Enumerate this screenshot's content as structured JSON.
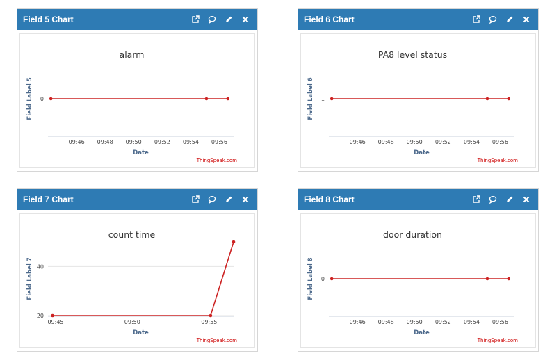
{
  "colors": {
    "header": "#2e7bb4",
    "series": "#cc2222",
    "axis": "#c8d2dc",
    "grid": "#e4e4e4"
  },
  "icons": [
    "external-link-icon",
    "comment-icon",
    "pencil-icon",
    "close-icon"
  ],
  "charts": [
    {
      "header_title": "Field 5 Chart",
      "chart_data": {
        "type": "line",
        "title": "alarm",
        "xlabel": "Date",
        "ylabel": "Field Label 5",
        "credit": "ThingSpeak.com",
        "x_range_minutes": [
          9.7333,
          9.95
        ],
        "x_ticks": [
          {
            "label": "09:46",
            "value": 9.7667
          },
          {
            "label": "09:48",
            "value": 9.8
          },
          {
            "label": "09:50",
            "value": 9.8333
          },
          {
            "label": "09:52",
            "value": 9.8667
          },
          {
            "label": "09:54",
            "value": 9.9
          },
          {
            "label": "09:56",
            "value": 9.9333
          }
        ],
        "ylim": [
          -1,
          1
        ],
        "y_ticks": [
          {
            "label": "0",
            "value": 0
          }
        ],
        "grid": false,
        "series": [
          {
            "x": [
              9.7367,
              9.9183,
              9.9433
            ],
            "y": [
              0,
              0,
              0
            ]
          }
        ]
      }
    },
    {
      "header_title": "Field 6 Chart",
      "chart_data": {
        "type": "line",
        "title": "PA8 level status",
        "xlabel": "Date",
        "ylabel": "Field Label 6",
        "credit": "ThingSpeak.com",
        "x_range_minutes": [
          9.7333,
          9.95
        ],
        "x_ticks": [
          {
            "label": "09:46",
            "value": 9.7667
          },
          {
            "label": "09:48",
            "value": 9.8
          },
          {
            "label": "09:50",
            "value": 9.8333
          },
          {
            "label": "09:52",
            "value": 9.8667
          },
          {
            "label": "09:54",
            "value": 9.9
          },
          {
            "label": "09:56",
            "value": 9.9333
          }
        ],
        "ylim": [
          0,
          2
        ],
        "y_ticks": [
          {
            "label": "1",
            "value": 1
          }
        ],
        "grid": false,
        "series": [
          {
            "x": [
              9.7367,
              9.9183,
              9.9433
            ],
            "y": [
              1,
              1,
              1
            ]
          }
        ]
      }
    },
    {
      "header_title": "Field 7 Chart",
      "chart_data": {
        "type": "line",
        "title": "count time",
        "xlabel": "Date",
        "ylabel": "Field Label 7",
        "credit": "ThingSpeak.com",
        "x_range_minutes": [
          9.7417,
          9.9433
        ],
        "x_ticks": [
          {
            "label": "09:45",
            "value": 9.75
          },
          {
            "label": "09:50",
            "value": 9.8333
          },
          {
            "label": "09:55",
            "value": 9.9167
          }
        ],
        "ylim": [
          20,
          50
        ],
        "y_ticks": [
          {
            "label": "20",
            "value": 20
          },
          {
            "label": "40",
            "value": 40
          }
        ],
        "grid": true,
        "series": [
          {
            "x": [
              9.7467,
              9.9183,
              9.9433
            ],
            "y": [
              20,
              20,
              50
            ]
          }
        ]
      }
    },
    {
      "header_title": "Field 8 Chart",
      "chart_data": {
        "type": "line",
        "title": "door duration",
        "xlabel": "Date",
        "ylabel": "Field Label 8",
        "credit": "ThingSpeak.com",
        "x_range_minutes": [
          9.7333,
          9.95
        ],
        "x_ticks": [
          {
            "label": "09:46",
            "value": 9.7667
          },
          {
            "label": "09:48",
            "value": 9.8
          },
          {
            "label": "09:50",
            "value": 9.8333
          },
          {
            "label": "09:52",
            "value": 9.8667
          },
          {
            "label": "09:54",
            "value": 9.9
          },
          {
            "label": "09:56",
            "value": 9.9333
          }
        ],
        "ylim": [
          -1,
          1
        ],
        "y_ticks": [
          {
            "label": "0",
            "value": 0
          }
        ],
        "grid": false,
        "series": [
          {
            "x": [
              9.7367,
              9.9183,
              9.9433
            ],
            "y": [
              0,
              0,
              0
            ]
          }
        ]
      }
    }
  ]
}
